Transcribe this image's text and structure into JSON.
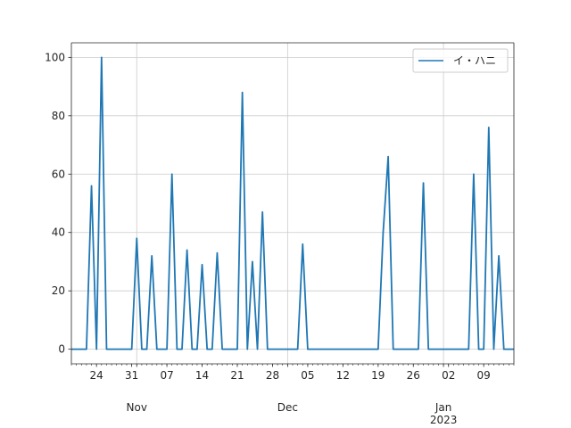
{
  "chart_data": {
    "type": "line",
    "title": "",
    "xlabel": "",
    "ylabel": "",
    "x_start": "2022-10-19",
    "x_end": "2023-01-15",
    "ylim": [
      -5,
      105
    ],
    "y_ticks": [
      0,
      20,
      40,
      60,
      80,
      100
    ],
    "x_minor_ticks": [
      {
        "date": "2022-10-24",
        "label": "24"
      },
      {
        "date": "2022-10-31",
        "label": "31"
      },
      {
        "date": "2022-11-07",
        "label": "07"
      },
      {
        "date": "2022-11-14",
        "label": "14"
      },
      {
        "date": "2022-11-21",
        "label": "21"
      },
      {
        "date": "2022-11-28",
        "label": "28"
      },
      {
        "date": "2022-12-05",
        "label": "05"
      },
      {
        "date": "2022-12-12",
        "label": "12"
      },
      {
        "date": "2022-12-19",
        "label": "19"
      },
      {
        "date": "2022-12-26",
        "label": "26"
      },
      {
        "date": "2023-01-02",
        "label": "02"
      },
      {
        "date": "2023-01-09",
        "label": "09"
      }
    ],
    "x_major_ticks": [
      {
        "date": "2022-11-01",
        "label": "Nov",
        "sublabel": ""
      },
      {
        "date": "2022-12-01",
        "label": "Dec",
        "sublabel": ""
      },
      {
        "date": "2023-01-01",
        "label": "Jan",
        "sublabel": "2023"
      }
    ],
    "grid": true,
    "legend_position": "top-right",
    "series": [
      {
        "name": "イ・ハニ",
        "color": "#1f77b4",
        "points": [
          [
            "2022-10-19",
            0
          ],
          [
            "2022-10-22",
            0
          ],
          [
            "2022-10-23",
            56
          ],
          [
            "2022-10-24",
            0
          ],
          [
            "2022-10-25",
            100
          ],
          [
            "2022-10-26",
            0
          ],
          [
            "2022-10-31",
            0
          ],
          [
            "2022-11-01",
            38
          ],
          [
            "2022-11-02",
            0
          ],
          [
            "2022-11-03",
            0
          ],
          [
            "2022-11-04",
            32
          ],
          [
            "2022-11-05",
            0
          ],
          [
            "2022-11-07",
            0
          ],
          [
            "2022-11-08",
            60
          ],
          [
            "2022-11-09",
            0
          ],
          [
            "2022-11-10",
            0
          ],
          [
            "2022-11-11",
            34
          ],
          [
            "2022-11-12",
            0
          ],
          [
            "2022-11-13",
            0
          ],
          [
            "2022-11-14",
            29
          ],
          [
            "2022-11-15",
            0
          ],
          [
            "2022-11-16",
            0
          ],
          [
            "2022-11-17",
            33
          ],
          [
            "2022-11-18",
            0
          ],
          [
            "2022-11-21",
            0
          ],
          [
            "2022-11-22",
            88
          ],
          [
            "2022-11-23",
            0
          ],
          [
            "2022-11-24",
            30
          ],
          [
            "2022-11-25",
            0
          ],
          [
            "2022-11-26",
            47
          ],
          [
            "2022-11-27",
            0
          ],
          [
            "2022-12-03",
            0
          ],
          [
            "2022-12-04",
            36
          ],
          [
            "2022-12-05",
            0
          ],
          [
            "2022-12-19",
            0
          ],
          [
            "2022-12-20",
            40
          ],
          [
            "2022-12-21",
            66
          ],
          [
            "2022-12-22",
            0
          ],
          [
            "2022-12-27",
            0
          ],
          [
            "2022-12-28",
            57
          ],
          [
            "2022-12-29",
            0
          ],
          [
            "2023-01-06",
            0
          ],
          [
            "2023-01-07",
            60
          ],
          [
            "2023-01-08",
            0
          ],
          [
            "2023-01-09",
            0
          ],
          [
            "2023-01-10",
            76
          ],
          [
            "2023-01-11",
            0
          ],
          [
            "2023-01-12",
            32
          ],
          [
            "2023-01-13",
            0
          ],
          [
            "2023-01-15",
            0
          ]
        ]
      }
    ]
  }
}
